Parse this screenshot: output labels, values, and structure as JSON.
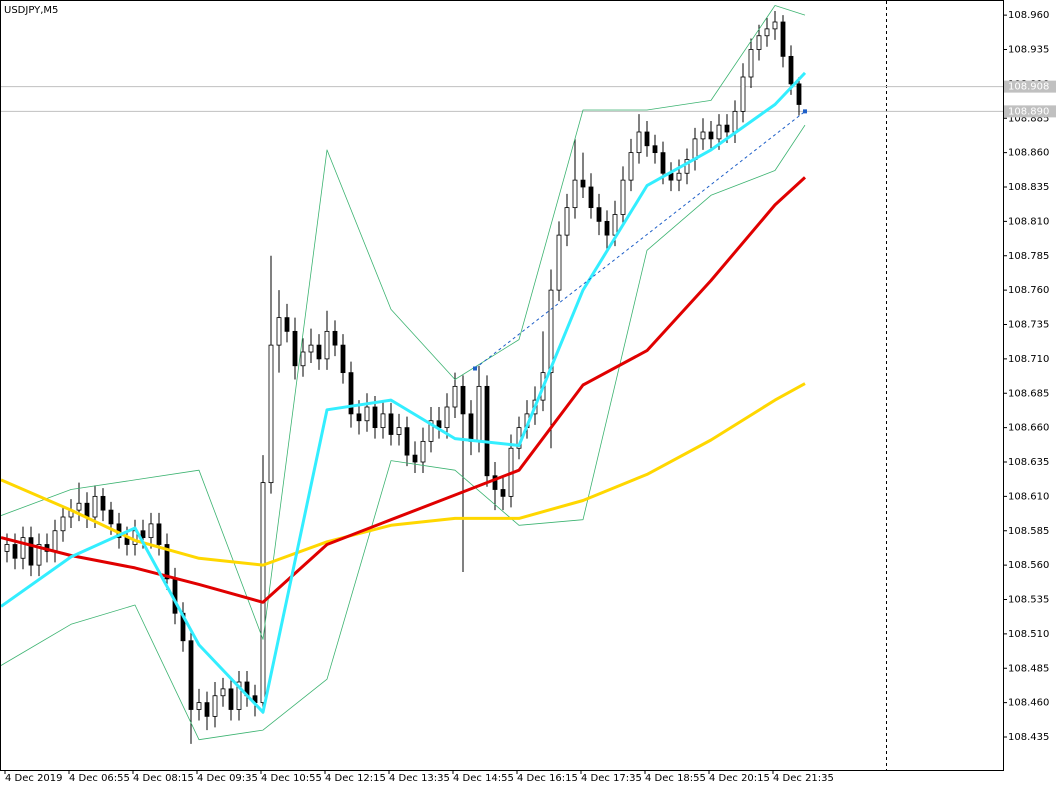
{
  "chart_data": {
    "type": "candlestick",
    "title": "USDJPY,M5",
    "xlim": [
      -0.875,
      124.5
    ],
    "ylim": [
      108.411,
      108.971
    ],
    "xticks": [
      {
        "value": -0.25,
        "label": "4 Dec 2019"
      },
      {
        "value": 7.75,
        "label": "4 Dec 06:55"
      },
      {
        "value": 15.75,
        "label": "4 Dec 08:15"
      },
      {
        "value": 23.75,
        "label": "4 Dec 09:35"
      },
      {
        "value": 31.75,
        "label": "4 Dec 10:55"
      },
      {
        "value": 39.75,
        "label": "4 Dec 12:15"
      },
      {
        "value": 47.75,
        "label": "4 Dec 13:35"
      },
      {
        "value": 55.75,
        "label": "4 Dec 14:55"
      },
      {
        "value": 63.75,
        "label": "4 Dec 16:15"
      },
      {
        "value": 71.75,
        "label": "4 Dec 17:35"
      },
      {
        "value": 79.75,
        "label": "4 Dec 18:55"
      },
      {
        "value": 87.75,
        "label": "4 Dec 20:15"
      },
      {
        "value": 95.75,
        "label": "4 Dec 21:35"
      }
    ],
    "yticks": [
      {
        "value": 108.435,
        "label": "108.435"
      },
      {
        "value": 108.46,
        "label": "108.460"
      },
      {
        "value": 108.485,
        "label": "108.485"
      },
      {
        "value": 108.51,
        "label": "108.510"
      },
      {
        "value": 108.535,
        "label": "108.535"
      },
      {
        "value": 108.56,
        "label": "108.560"
      },
      {
        "value": 108.585,
        "label": "108.585"
      },
      {
        "value": 108.61,
        "label": "108.610"
      },
      {
        "value": 108.635,
        "label": "108.635"
      },
      {
        "value": 108.66,
        "label": "108.660"
      },
      {
        "value": 108.685,
        "label": "108.685"
      },
      {
        "value": 108.71,
        "label": "108.710"
      },
      {
        "value": 108.735,
        "label": "108.735"
      },
      {
        "value": 108.76,
        "label": "108.760"
      },
      {
        "value": 108.785,
        "label": "108.785"
      },
      {
        "value": 108.81,
        "label": "108.810"
      },
      {
        "value": 108.835,
        "label": "108.835"
      },
      {
        "value": 108.86,
        "label": "108.860"
      },
      {
        "value": 108.885,
        "label": "108.885"
      },
      {
        "value": 108.91,
        "label": "108.910"
      },
      {
        "value": 108.935,
        "label": "108.935"
      },
      {
        "value": 108.96,
        "label": "108.960"
      }
    ],
    "bull_color": "#ffffff",
    "bear_color": "#000000",
    "open": [
      108.57,
      108.575,
      108.565,
      108.58,
      108.56,
      108.575,
      108.57,
      108.585,
      108.595,
      108.6,
      108.605,
      108.595,
      108.61,
      108.6,
      108.59,
      108.58,
      108.575,
      108.585,
      108.58,
      108.59,
      108.575,
      108.55,
      108.525,
      108.505,
      108.455,
      108.46,
      108.45,
      108.465,
      108.47,
      108.455,
      108.475,
      108.465,
      108.46,
      108.62,
      108.72,
      108.74,
      108.73,
      108.705,
      108.715,
      108.72,
      108.71,
      108.73,
      108.72,
      108.7,
      108.67,
      108.665,
      108.675,
      108.66,
      108.67,
      108.655,
      108.66,
      108.64,
      108.635,
      108.65,
      108.665,
      108.66,
      108.675,
      108.69,
      108.67,
      108.65,
      108.69,
      108.625,
      108.615,
      108.61,
      108.645,
      108.66,
      108.67,
      108.68,
      108.7,
      108.76,
      108.8,
      108.82,
      108.84,
      108.835,
      108.82,
      108.81,
      108.8,
      108.815,
      108.84,
      108.86,
      108.875,
      108.865,
      108.86,
      108.845,
      108.84,
      108.845,
      108.855,
      108.87,
      108.875,
      108.87,
      108.88,
      108.875,
      108.89,
      108.915,
      108.935,
      108.945,
      108.95,
      108.955,
      108.93,
      108.91
    ],
    "high": [
      108.583,
      108.583,
      108.588,
      108.588,
      108.583,
      108.583,
      108.593,
      108.603,
      108.608,
      108.62,
      108.613,
      108.618,
      108.616,
      108.606,
      108.598,
      108.588,
      108.593,
      108.593,
      108.598,
      108.598,
      108.583,
      108.558,
      108.533,
      108.513,
      108.47,
      108.468,
      108.475,
      108.478,
      108.478,
      108.483,
      108.483,
      108.473,
      108.64,
      108.785,
      108.76,
      108.75,
      108.74,
      108.725,
      108.732,
      108.728,
      108.745,
      108.738,
      108.728,
      108.708,
      108.68,
      108.685,
      108.683,
      108.68,
      108.678,
      108.67,
      108.668,
      108.65,
      108.66,
      108.675,
      108.675,
      108.685,
      108.7,
      108.698,
      108.68,
      108.705,
      108.698,
      108.635,
      108.625,
      108.655,
      108.668,
      108.68,
      108.69,
      108.73,
      108.775,
      108.81,
      108.83,
      108.87,
      108.86,
      108.845,
      108.83,
      108.818,
      108.825,
      108.85,
      108.87,
      108.888,
      108.883,
      108.873,
      108.868,
      108.853,
      108.855,
      108.863,
      108.878,
      108.885,
      108.883,
      108.888,
      108.888,
      108.898,
      108.925,
      108.943,
      108.953,
      108.958,
      108.963,
      108.96,
      108.938,
      108.915
    ],
    "low": [
      108.562,
      108.557,
      108.557,
      108.552,
      108.552,
      108.562,
      108.562,
      108.577,
      108.587,
      108.592,
      108.587,
      108.587,
      108.592,
      108.582,
      108.572,
      108.567,
      108.567,
      108.572,
      108.572,
      108.567,
      108.542,
      108.517,
      108.497,
      108.43,
      108.447,
      108.44,
      108.442,
      108.457,
      108.447,
      108.447,
      108.457,
      108.45,
      108.452,
      108.612,
      108.7,
      108.722,
      108.695,
      108.697,
      108.707,
      108.702,
      108.702,
      108.712,
      108.692,
      108.66,
      108.655,
      108.657,
      108.652,
      108.652,
      108.647,
      108.647,
      108.632,
      108.627,
      108.627,
      108.642,
      108.652,
      108.652,
      108.667,
      108.555,
      108.64,
      108.642,
      108.617,
      108.6,
      108.6,
      108.602,
      108.637,
      108.652,
      108.662,
      108.672,
      108.645,
      108.752,
      108.792,
      108.812,
      108.827,
      108.812,
      108.8,
      108.79,
      108.792,
      108.807,
      108.832,
      108.852,
      108.857,
      108.852,
      108.837,
      108.832,
      108.832,
      108.837,
      108.847,
      108.862,
      108.862,
      108.862,
      108.867,
      108.867,
      108.882,
      108.907,
      108.927,
      108.937,
      108.942,
      108.922,
      108.902,
      108.887
    ],
    "close": [
      108.575,
      108.565,
      108.58,
      108.56,
      108.575,
      108.57,
      108.585,
      108.595,
      108.6,
      108.605,
      108.595,
      108.61,
      108.6,
      108.59,
      108.58,
      108.575,
      108.585,
      108.58,
      108.59,
      108.575,
      108.55,
      108.525,
      108.505,
      108.455,
      108.46,
      108.45,
      108.465,
      108.47,
      108.455,
      108.475,
      108.465,
      108.46,
      108.62,
      108.72,
      108.74,
      108.73,
      108.705,
      108.715,
      108.72,
      108.71,
      108.73,
      108.72,
      108.7,
      108.67,
      108.665,
      108.675,
      108.66,
      108.67,
      108.655,
      108.66,
      108.64,
      108.635,
      108.65,
      108.665,
      108.66,
      108.675,
      108.69,
      108.67,
      108.65,
      108.69,
      108.625,
      108.615,
      108.61,
      108.645,
      108.66,
      108.67,
      108.68,
      108.7,
      108.76,
      108.8,
      108.82,
      108.84,
      108.835,
      108.82,
      108.81,
      108.8,
      108.815,
      108.84,
      108.86,
      108.875,
      108.865,
      108.86,
      108.845,
      108.84,
      108.845,
      108.855,
      108.87,
      108.875,
      108.87,
      108.88,
      108.875,
      108.89,
      108.915,
      108.935,
      108.945,
      108.95,
      108.955,
      108.93,
      108.91,
      108.895
    ],
    "lines": [
      {
        "color": "#3cb371",
        "width": 0.8,
        "x": [
          -0.75,
          8,
          16,
          24,
          32,
          40,
          48,
          56,
          64,
          72,
          80,
          88,
          96,
          99.75
        ],
        "values": [
          108.596,
          108.615,
          108.622,
          108.629,
          108.506,
          108.862,
          108.746,
          108.695,
          108.724,
          108.891,
          108.891,
          108.898,
          108.967,
          108.96
        ]
      },
      {
        "color": "#3cb371",
        "width": 0.8,
        "x": [
          -0.75,
          8,
          16,
          24,
          32,
          40,
          48,
          56,
          64,
          72,
          80,
          88,
          96,
          99.75
        ],
        "values": [
          108.487,
          108.517,
          108.531,
          108.433,
          108.44,
          108.477,
          108.636,
          108.629,
          108.589,
          108.593,
          108.789,
          108.829,
          108.847,
          108.88
        ]
      },
      {
        "color": "#ffd700",
        "width": 3,
        "x": [
          -0.75,
          8,
          16,
          24,
          32,
          40,
          48,
          56,
          64,
          72,
          80,
          88,
          96,
          99.75
        ],
        "values": [
          108.622,
          108.6,
          108.578,
          108.565,
          108.56,
          108.577,
          108.589,
          108.594,
          108.594,
          108.607,
          108.626,
          108.651,
          108.68,
          108.692
        ]
      },
      {
        "color": "#e00000",
        "width": 3,
        "x": [
          -0.75,
          8,
          16,
          24,
          32,
          40,
          48,
          56,
          64,
          72,
          80,
          88,
          96,
          99.75
        ],
        "values": [
          108.58,
          108.567,
          108.558,
          108.546,
          108.533,
          108.575,
          108.593,
          108.611,
          108.629,
          108.691,
          108.716,
          108.767,
          108.822,
          108.842
        ]
      },
      {
        "color": "#33eeff",
        "width": 3,
        "x": [
          -0.75,
          8,
          16,
          24,
          32,
          40,
          48,
          56,
          64,
          72,
          80,
          88,
          96,
          99.75
        ],
        "values": [
          108.53,
          108.566,
          108.587,
          108.502,
          108.453,
          108.673,
          108.68,
          108.652,
          108.647,
          108.76,
          108.836,
          108.862,
          108.895,
          108.918
        ]
      }
    ],
    "trendline": {
      "color": "#1e5fc8",
      "x": [
        58.5,
        99.75
      ],
      "values": [
        108.703,
        108.89
      ]
    },
    "price_lines": [
      {
        "value": 108.908,
        "label": "108.908"
      },
      {
        "value": 108.89,
        "label": "108.890"
      }
    ]
  }
}
